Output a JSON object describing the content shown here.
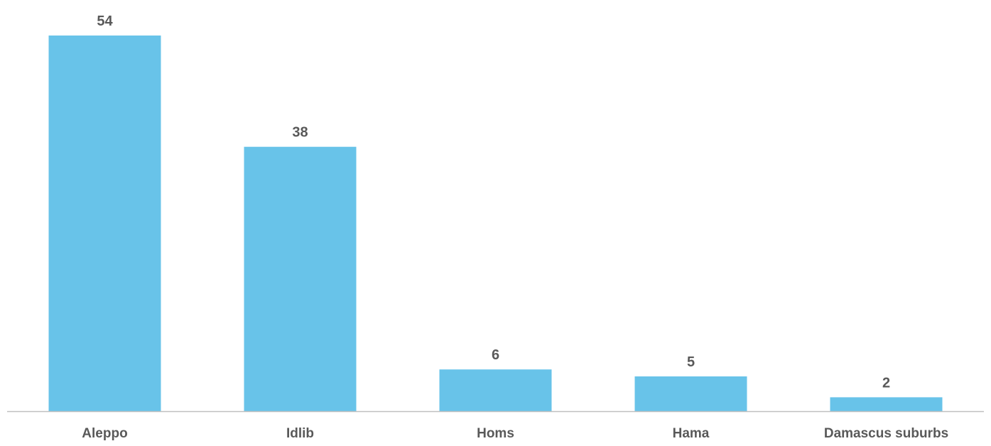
{
  "chart_data": {
    "type": "bar",
    "title": "",
    "xlabel": "",
    "ylabel": "",
    "categories": [
      "Aleppo",
      "Idlib",
      "Homs",
      "Hama",
      "Damascus suburbs"
    ],
    "values": [
      54,
      38,
      6,
      5,
      2
    ],
    "data_labels": [
      "54",
      "38",
      "6",
      "5",
      "2"
    ],
    "ylim": [
      0,
      54
    ],
    "grid": false,
    "legend": "none",
    "colors": {
      "bar": "#68c3e9",
      "axis": "#bfbfbf",
      "label_text": "#595959"
    }
  }
}
